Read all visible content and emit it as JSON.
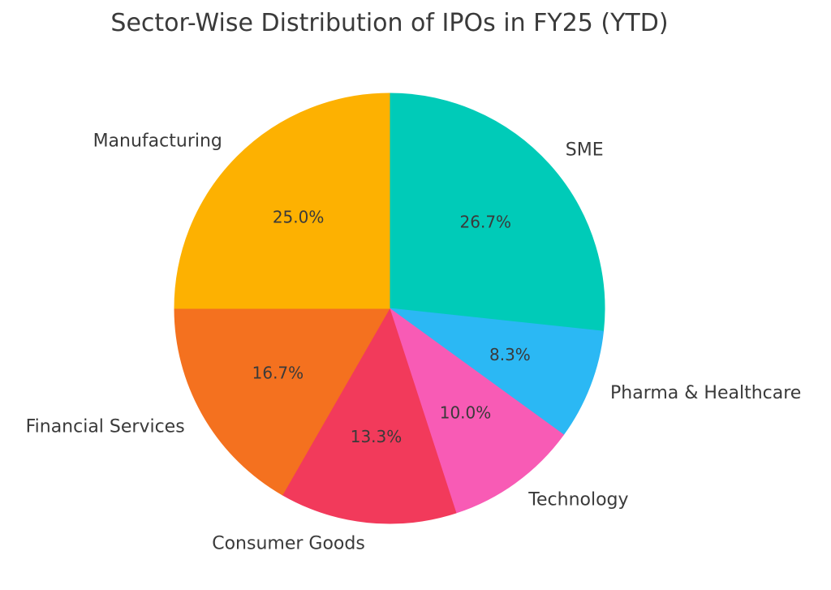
{
  "chart_data": {
    "type": "pie",
    "title": "Sector-Wise Distribution of IPOs in FY25 (YTD)",
    "categories": [
      "SME",
      "Pharma & Healthcare",
      "Technology",
      "Consumer Goods",
      "Financial Services",
      "Manufacturing"
    ],
    "values_pct": [
      26.7,
      8.3,
      10.0,
      13.3,
      16.7,
      25.0
    ],
    "autopct_labels": [
      "26.7%",
      "8.3%",
      "10.0%",
      "13.3%",
      "16.7%",
      "25.0%"
    ],
    "colors": [
      "#00CBB8",
      "#2BB8F4",
      "#F85BB5",
      "#F23A5B",
      "#F4711F",
      "#FDB101"
    ],
    "slice_ids": [
      "sme",
      "pharma-healthcare",
      "technology",
      "consumer-goods",
      "financial-services",
      "manufacturing"
    ],
    "start_angle_deg": 90,
    "direction": "clockwise",
    "label_distance": 1.1,
    "pct_distance": 0.6,
    "text_color": "#3A3A3A",
    "legend": "none",
    "background_color": "#FFFFFF"
  }
}
